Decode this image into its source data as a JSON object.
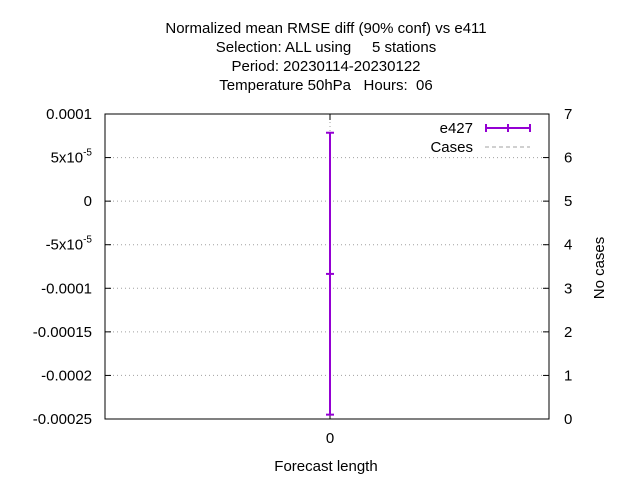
{
  "chart_data": {
    "type": "errorbar",
    "title_lines": [
      "Normalized mean RMSE diff (90% conf) vs e411",
      "Selection: ALL using     5 stations",
      "Period: 20230114-20230122",
      "Temperature 50hPa   Hours:  06"
    ],
    "xlabel": "Forecast length",
    "ylabel": "",
    "y2label": "No cases",
    "x_ticks": [
      "0"
    ],
    "y_ticks": [
      {
        "value": 0.0001,
        "label": "0.0001"
      },
      {
        "value": 5e-05,
        "label_base": "5x10",
        "label_exp": "-5"
      },
      {
        "value": 0,
        "label": "0"
      },
      {
        "value": -5e-05,
        "label_base": "-5x10",
        "label_exp": "-5"
      },
      {
        "value": -0.0001,
        "label": "-0.0001"
      },
      {
        "value": -0.00015,
        "label": "-0.00015"
      },
      {
        "value": -0.0002,
        "label": "-0.0002"
      },
      {
        "value": -0.00025,
        "label": "-0.00025"
      }
    ],
    "y2_ticks": [
      "0",
      "1",
      "2",
      "3",
      "4",
      "5",
      "6",
      "7"
    ],
    "ylim": [
      -0.00025,
      0.0001
    ],
    "y2lim": [
      0,
      7
    ],
    "grid": true,
    "legend_position": "top-right",
    "series": [
      {
        "name": "e427",
        "color": "#9400d3",
        "x": [
          0
        ],
        "y": [
          -8.35e-05
        ],
        "y_low": [
          -0.000245
        ],
        "y_high": [
          7.85e-05
        ]
      },
      {
        "name": "Cases",
        "color": "#a0a0a0",
        "style": "dashed",
        "x": [],
        "y": []
      }
    ]
  }
}
